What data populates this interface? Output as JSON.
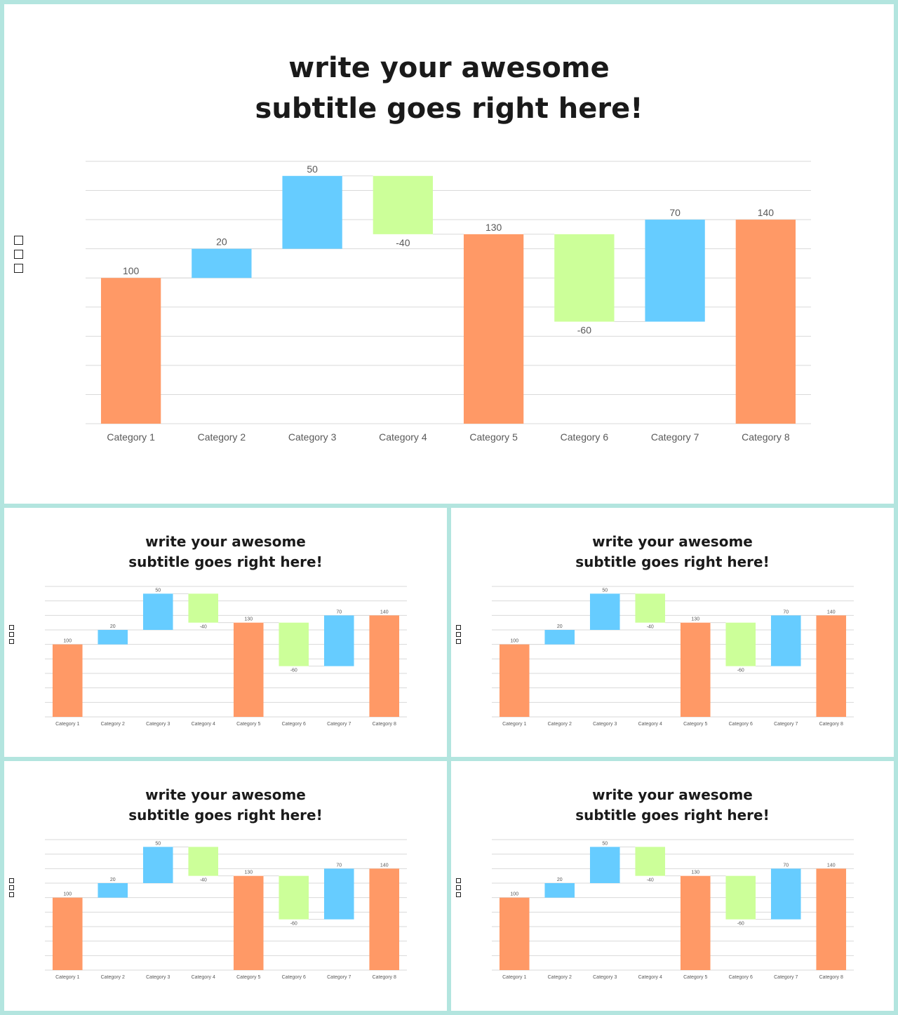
{
  "title_lines": [
    "write your awesome",
    "subtitle goes right here!"
  ],
  "colors": {
    "total": "#ff9966",
    "increase": "#66ccff",
    "decrease": "#ccff99",
    "panel_border": "#b3e5df",
    "gridline": "#d9d9d9",
    "connector": "#d9d9d9",
    "label_text": "#595959"
  },
  "chart_data": [
    {
      "type": "bar",
      "subtype": "waterfall",
      "title": "write your awesome subtitle goes right here!",
      "categories": [
        "Category 1",
        "Category 2",
        "Category 3",
        "Category 4",
        "Category 5",
        "Category 6",
        "Category 7",
        "Category 8"
      ],
      "values": [
        100,
        20,
        50,
        -40,
        130,
        -60,
        70,
        140
      ],
      "kinds": [
        "total",
        "increase",
        "increase",
        "decrease",
        "total",
        "decrease",
        "increase",
        "total"
      ],
      "data_labels": [
        "100",
        "20",
        "50",
        "-40",
        "130",
        "-60",
        "70",
        "140"
      ],
      "ylim": [
        0,
        180
      ],
      "gridline_step": 20,
      "grid": true,
      "xlabel": "",
      "ylabel": "",
      "legend": "left"
    },
    {
      "type": "bar",
      "subtype": "waterfall",
      "title": "write your awesome subtitle goes right here!",
      "categories": [
        "Category 1",
        "Category 2",
        "Category 3",
        "Category 4",
        "Category 5",
        "Category 6",
        "Category 7",
        "Category 8"
      ],
      "values": [
        100,
        20,
        50,
        -40,
        130,
        -60,
        70,
        140
      ],
      "kinds": [
        "total",
        "increase",
        "increase",
        "decrease",
        "total",
        "decrease",
        "increase",
        "total"
      ],
      "data_labels": [
        "100",
        "20",
        "50",
        "-40",
        "130",
        "-60",
        "70",
        "140"
      ],
      "ylim": [
        0,
        180
      ],
      "gridline_step": 20,
      "grid": true,
      "xlabel": "",
      "ylabel": "",
      "legend": "left"
    },
    {
      "type": "bar",
      "subtype": "waterfall",
      "title": "write your awesome subtitle goes right here!",
      "categories": [
        "Category 1",
        "Category 2",
        "Category 3",
        "Category 4",
        "Category 5",
        "Category 6",
        "Category 7",
        "Category 8"
      ],
      "values": [
        100,
        20,
        50,
        -40,
        130,
        -60,
        70,
        140
      ],
      "kinds": [
        "total",
        "increase",
        "increase",
        "decrease",
        "total",
        "decrease",
        "increase",
        "total"
      ],
      "data_labels": [
        "100",
        "20",
        "50",
        "-40",
        "130",
        "-60",
        "70",
        "140"
      ],
      "ylim": [
        0,
        180
      ],
      "gridline_step": 20,
      "grid": true,
      "xlabel": "",
      "ylabel": "",
      "legend": "left"
    },
    {
      "type": "bar",
      "subtype": "waterfall",
      "title": "write your awesome subtitle goes right here!",
      "categories": [
        "Category 1",
        "Category 2",
        "Category 3",
        "Category 4",
        "Category 5",
        "Category 6",
        "Category 7",
        "Category 8"
      ],
      "values": [
        100,
        20,
        50,
        -40,
        130,
        -60,
        70,
        140
      ],
      "kinds": [
        "total",
        "increase",
        "increase",
        "decrease",
        "total",
        "decrease",
        "increase",
        "total"
      ],
      "data_labels": [
        "100",
        "20",
        "50",
        "-40",
        "130",
        "-60",
        "70",
        "140"
      ],
      "ylim": [
        0,
        180
      ],
      "gridline_step": 20,
      "grid": true,
      "xlabel": "",
      "ylabel": "",
      "legend": "left"
    },
    {
      "type": "bar",
      "subtype": "waterfall",
      "title": "write your awesome subtitle goes right here!",
      "categories": [
        "Category 1",
        "Category 2",
        "Category 3",
        "Category 4",
        "Category 5",
        "Category 6",
        "Category 7",
        "Category 8"
      ],
      "values": [
        100,
        20,
        50,
        -40,
        130,
        -60,
        70,
        140
      ],
      "kinds": [
        "total",
        "increase",
        "increase",
        "decrease",
        "total",
        "decrease",
        "increase",
        "total"
      ],
      "data_labels": [
        "100",
        "20",
        "50",
        "-40",
        "130",
        "-60",
        "70",
        "140"
      ],
      "ylim": [
        0,
        180
      ],
      "gridline_step": 20,
      "grid": true,
      "xlabel": "",
      "ylabel": "",
      "legend": "left"
    }
  ]
}
